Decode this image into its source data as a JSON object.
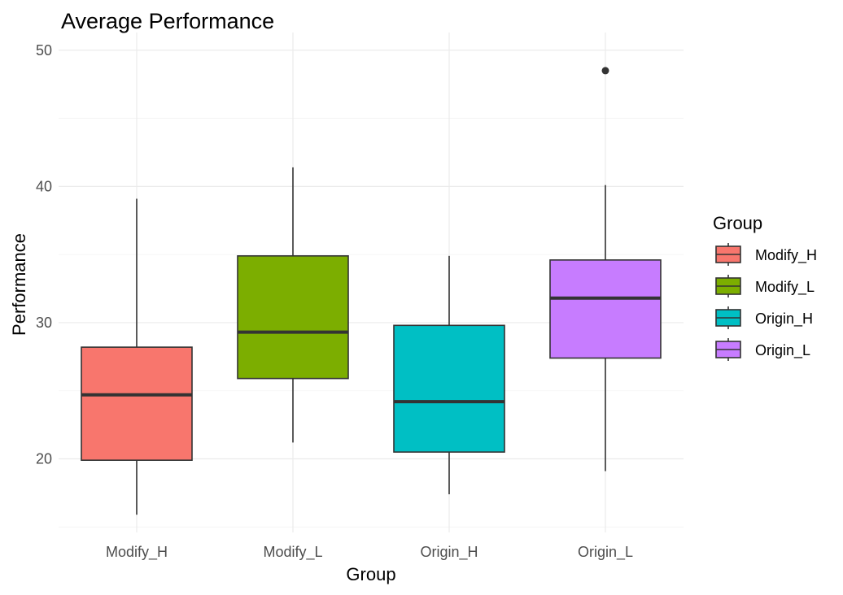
{
  "chart_data": {
    "type": "boxplot",
    "title": "Average Performance",
    "xlabel": "Group",
    "ylabel": "Performance",
    "ylim": [
      14.6,
      51.3
    ],
    "y_ticks": [
      20,
      30,
      40,
      50
    ],
    "y_minor_ticks": [
      15,
      25,
      35,
      45
    ],
    "grid": true,
    "legend": {
      "title": "Group",
      "placement": "right"
    },
    "categories": [
      "Modify_H",
      "Modify_L",
      "Origin_H",
      "Origin_L"
    ],
    "series": [
      {
        "name": "Modify_H",
        "color": "#F8766D",
        "min": 15.9,
        "q1": 19.9,
        "median": 24.7,
        "q3": 28.2,
        "max": 39.1,
        "outliers": []
      },
      {
        "name": "Modify_L",
        "color": "#7CAE00",
        "min": 21.2,
        "q1": 25.9,
        "median": 29.3,
        "q3": 34.9,
        "max": 41.4,
        "outliers": []
      },
      {
        "name": "Origin_H",
        "color": "#00BFC4",
        "min": 17.4,
        "q1": 20.5,
        "median": 24.2,
        "q3": 29.8,
        "max": 34.9,
        "outliers": []
      },
      {
        "name": "Origin_L",
        "color": "#C77CFF",
        "min": 19.1,
        "q1": 27.4,
        "median": 31.8,
        "q3": 34.6,
        "max": 40.1,
        "outliers": [
          48.5
        ]
      }
    ]
  }
}
